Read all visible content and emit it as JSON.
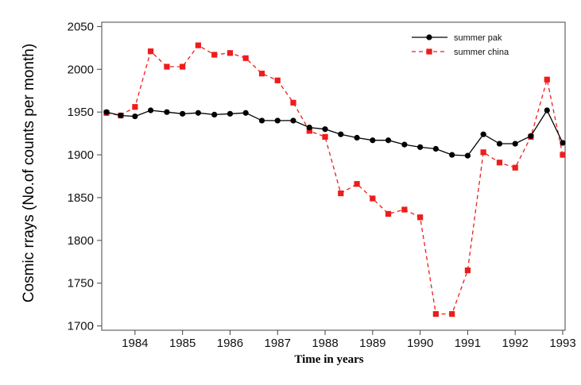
{
  "chart_data": {
    "type": "line",
    "xlabel": "Time in years",
    "ylabel": "Cosmic rrays (No.of counts per month)",
    "xlim": [
      1983.3,
      1993.05
    ],
    "ylim": [
      1695,
      2055
    ],
    "xticks": [
      1984,
      1985,
      1986,
      1987,
      1988,
      1989,
      1990,
      1991,
      1992,
      1993
    ],
    "yticks": [
      1700,
      1750,
      1800,
      1850,
      1900,
      1950,
      2000,
      2050
    ],
    "grid": false,
    "legend_position": "top-right",
    "series": [
      {
        "name": "summer pak",
        "color": "#000000",
        "marker": "circle",
        "line_style": "solid",
        "x": [
          1983.4,
          1983.7,
          1984.0,
          1984.33,
          1984.67,
          1985.0,
          1985.33,
          1985.67,
          1986.0,
          1986.33,
          1986.67,
          1987.0,
          1987.33,
          1987.67,
          1988.0,
          1988.33,
          1988.67,
          1989.0,
          1989.33,
          1989.67,
          1990.0,
          1990.33,
          1990.67,
          1991.0,
          1991.33,
          1991.67,
          1992.0,
          1992.33,
          1992.67,
          1993.0
        ],
        "y": [
          1950,
          1946,
          1945,
          1952,
          1950,
          1948,
          1949,
          1947,
          1948,
          1949,
          1940,
          1940,
          1940,
          1932,
          1930,
          1924,
          1920,
          1917,
          1917,
          1912,
          1909,
          1907,
          1900,
          1899,
          1924,
          1913,
          1913,
          1922,
          1952,
          1914
        ]
      },
      {
        "name": "summer china",
        "color": "#ee1c1c",
        "marker": "square",
        "line_style": "dashed",
        "x": [
          1983.4,
          1983.7,
          1984.0,
          1984.33,
          1984.67,
          1985.0,
          1985.33,
          1985.67,
          1986.0,
          1986.33,
          1986.67,
          1987.0,
          1987.33,
          1987.67,
          1988.0,
          1988.33,
          1988.67,
          1989.0,
          1989.33,
          1989.67,
          1990.0,
          1990.33,
          1990.67,
          1991.0,
          1991.33,
          1991.67,
          1992.0,
          1992.33,
          1992.67,
          1993.0
        ],
        "y": [
          1949,
          1946,
          1956,
          2021,
          2003,
          2003,
          2028,
          2017,
          2019,
          2013,
          1995,
          1987,
          1961,
          1928,
          1921,
          1855,
          1866,
          1849,
          1831,
          1836,
          1827,
          1714,
          1714,
          1765,
          1903,
          1891,
          1885,
          1921,
          1988,
          1900
        ]
      }
    ]
  }
}
